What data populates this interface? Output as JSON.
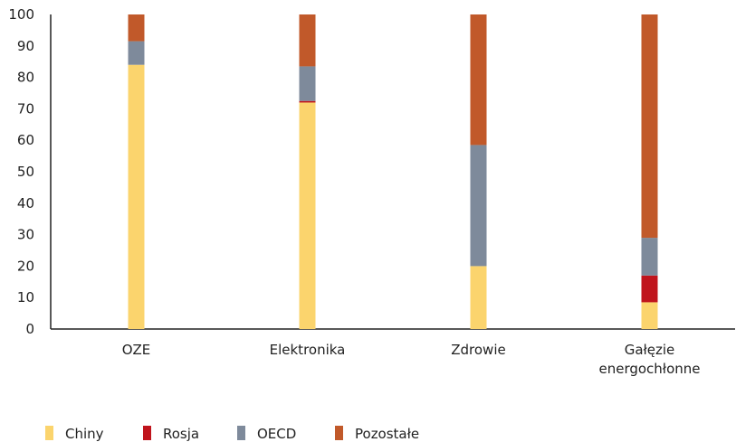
{
  "chart_data": {
    "type": "bar",
    "stacked": true,
    "categories": [
      [
        "OZE"
      ],
      [
        "Elektronika"
      ],
      [
        "Zdrowie"
      ],
      [
        "Gałęzie",
        "energochłonne"
      ]
    ],
    "series": [
      {
        "name": "Chiny",
        "color": "#FBD46D",
        "values": [
          84,
          72,
          20,
          8.5
        ]
      },
      {
        "name": "Rosja",
        "color": "#C0141C",
        "values": [
          0,
          0.5,
          0,
          8.5
        ]
      },
      {
        "name": "OECD",
        "color": "#7E8A9B",
        "values": [
          7.5,
          11,
          38.5,
          12
        ]
      },
      {
        "name": "Pozostałe",
        "color": "#C1592A",
        "values": [
          8.5,
          16.5,
          41.5,
          71
        ]
      }
    ],
    "ylim": [
      0,
      100
    ],
    "yticks": [
      0,
      10,
      20,
      30,
      40,
      50,
      60,
      70,
      80,
      90,
      100
    ],
    "grid": false,
    "legend_position": "bottom-left"
  }
}
